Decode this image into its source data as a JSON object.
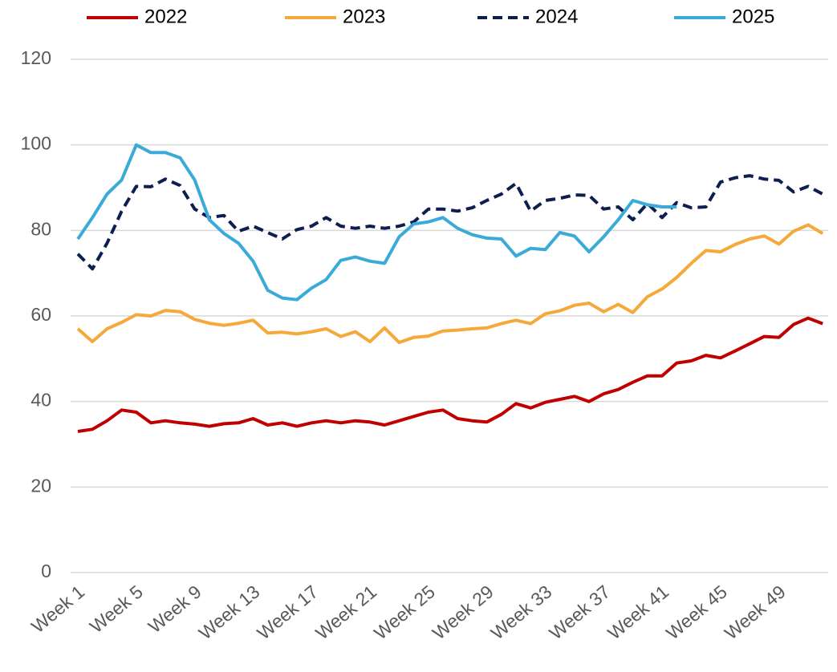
{
  "chart_data": {
    "type": "line",
    "categories": [
      "Week 1",
      null,
      null,
      null,
      "Week 5",
      null,
      null,
      null,
      "Week 9",
      null,
      null,
      null,
      "Week 13",
      null,
      null,
      null,
      "Week 17",
      null,
      null,
      null,
      "Week 21",
      null,
      null,
      null,
      "Week 25",
      null,
      null,
      null,
      "Week 29",
      null,
      null,
      null,
      "Week 33",
      null,
      null,
      null,
      "Week 37",
      null,
      null,
      null,
      "Week 41",
      null,
      null,
      null,
      "Week 45",
      null,
      null,
      null,
      "Week 49",
      null,
      null,
      null
    ],
    "series": [
      {
        "name": "2022",
        "color": "#c00000",
        "dash": false,
        "values": [
          33,
          33.5,
          35.5,
          38,
          37.5,
          35,
          35.5,
          35,
          34.7,
          34.2,
          34.8,
          35,
          36,
          34.5,
          35,
          34.2,
          35,
          35.5,
          35,
          35.5,
          35.2,
          34.5,
          35.5,
          36.5,
          37.5,
          38,
          36,
          35.5,
          35.2,
          37,
          39.5,
          38.5,
          39.8,
          40.5,
          41.2,
          40,
          41.8,
          42.8,
          44.5,
          46,
          46,
          49,
          49.5,
          50.8,
          50.2,
          51.8,
          53.5,
          55.2,
          55,
          58,
          59.5,
          58.2
        ]
      },
      {
        "name": "2023",
        "color": "#f5a93a",
        "dash": false,
        "values": [
          57,
          54,
          57,
          58.5,
          60.3,
          60,
          61.3,
          61,
          59.2,
          58.3,
          57.8,
          58.3,
          59,
          56,
          56.2,
          55.8,
          56.3,
          57,
          55.2,
          56.3,
          54,
          57.2,
          53.8,
          55,
          55.3,
          56.5,
          56.7,
          57,
          57.2,
          58.2,
          59,
          58.2,
          60.5,
          61.2,
          62.5,
          63,
          61,
          62.7,
          60.8,
          64.5,
          66.3,
          69,
          72.3,
          75.3,
          75,
          76.7,
          78,
          78.7,
          76.8,
          79.8,
          81.3,
          79.3
        ]
      },
      {
        "name": "2024",
        "color": "#0d1f4f",
        "dash": true,
        "values": [
          74.5,
          71,
          77,
          84.5,
          90.3,
          90.2,
          92,
          90.5,
          85,
          83,
          83.5,
          79.8,
          81,
          79.5,
          78,
          80.2,
          81,
          83,
          81,
          80.5,
          81,
          80.5,
          81,
          82,
          85,
          85,
          84.5,
          85.3,
          87,
          88.5,
          91,
          84.5,
          87,
          87.5,
          88.3,
          88.2,
          85,
          85.5,
          82.5,
          86.3,
          83,
          86.5,
          85.3,
          85.5,
          91.3,
          92.3,
          92.8,
          92,
          91.7,
          89,
          90.3,
          88.5
        ]
      },
      {
        "name": "2025",
        "color": "#3aabd8",
        "dash": false,
        "values": [
          78,
          83,
          88.5,
          91.8,
          100,
          98.2,
          98.2,
          97,
          91.8,
          82.5,
          79.3,
          77,
          72.8,
          66,
          64.2,
          63.8,
          66.5,
          68.5,
          73,
          73.8,
          72.8,
          72.3,
          78.5,
          81.5,
          82,
          83,
          80.5,
          79,
          78.2,
          78,
          74,
          75.8,
          75.5,
          79.5,
          78.7,
          75,
          78.5,
          82.5,
          87,
          86,
          85.5,
          85.5,
          null,
          null,
          null,
          null,
          null,
          null,
          null,
          null,
          null,
          null
        ]
      }
    ],
    "ylim": [
      0,
      120
    ],
    "yticks": [
      0,
      20,
      40,
      60,
      80,
      100,
      120
    ],
    "grid": true,
    "legend": "top"
  }
}
